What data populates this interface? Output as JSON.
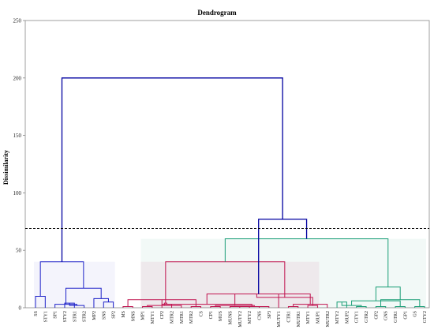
{
  "chart_data": {
    "type": "dendrogram",
    "title": "Dendrogram",
    "ylabel": "Dissimilarity",
    "xlabel": "",
    "ylim": [
      0,
      250
    ],
    "yticks": [
      0,
      50,
      100,
      150,
      200,
      250
    ],
    "cut_threshold": 69,
    "leaves": [
      "SS",
      "STY1",
      "SP1",
      "STY2",
      "STR1",
      "STR2",
      "MP2",
      "SNS",
      "SP2",
      "MS",
      "MNS",
      "MP1",
      "MTY1",
      "CP2",
      "MTR2",
      "MTR1",
      "MTR2",
      "CS",
      "CP1",
      "MUS",
      "MUNS",
      "MUTY2",
      "MTY2",
      "CNS",
      "SP3",
      "MUTY1",
      "CTR1",
      "MUTR1",
      "MTY1",
      "MUP1",
      "MUTR2",
      "MTY2",
      "MUP2",
      "GTY1",
      "GTR2",
      "GP2",
      "GNS",
      "GTR1",
      "GP1",
      "GS",
      "GTY2"
    ],
    "merges": [
      {
        "left": 0,
        "right": 1,
        "height": 10,
        "cluster": 1
      },
      {
        "left": 3,
        "right": 4,
        "height": 4,
        "cluster": 1
      },
      {
        "left": 42,
        "right": 5,
        "height": 2,
        "cluster": 1
      },
      {
        "left": 2,
        "right": 43,
        "height": 3,
        "cluster": 1
      },
      {
        "left": 7,
        "right": 8,
        "height": 5,
        "cluster": 1
      },
      {
        "left": 6,
        "right": 45,
        "height": 8,
        "cluster": 1
      },
      {
        "left": 44,
        "right": 46,
        "height": 17,
        "cluster": 1
      },
      {
        "left": 41,
        "right": 47,
        "height": 40,
        "cluster": 1
      },
      {
        "left": 9,
        "right": 10,
        "height": 1,
        "cluster": 2
      },
      {
        "left": 11,
        "right": 12,
        "height": 1,
        "cluster": 2
      },
      {
        "left": 13,
        "right": 14,
        "height": 3,
        "cluster": 2
      },
      {
        "left": 50,
        "right": 15,
        "height": 2,
        "cluster": 2
      },
      {
        "left": 16,
        "right": 17,
        "height": 1,
        "cluster": 2
      },
      {
        "left": 51,
        "right": 52,
        "height": 4,
        "cluster": 2
      },
      {
        "left": 49,
        "right": 53,
        "height": 7,
        "cluster": 2
      },
      {
        "left": 18,
        "right": 19,
        "height": 1,
        "cluster": 2
      },
      {
        "left": 20,
        "right": 21,
        "height": 1,
        "cluster": 2
      },
      {
        "left": 22,
        "right": 23,
        "height": 1,
        "cluster": 2
      },
      {
        "left": 57,
        "right": 24,
        "height": 1,
        "cluster": 2
      },
      {
        "left": 56,
        "right": 58,
        "height": 2,
        "cluster": 2
      },
      {
        "left": 55,
        "right": 59,
        "height": 3,
        "cluster": 2
      },
      {
        "left": 60,
        "right": 25,
        "height": 12,
        "cluster": 2
      },
      {
        "left": 26,
        "right": 27,
        "height": 1,
        "cluster": 2
      },
      {
        "left": 28,
        "right": 29,
        "height": 2,
        "cluster": 2
      },
      {
        "left": 63,
        "right": 30,
        "height": 3,
        "cluster": 2
      },
      {
        "left": 62,
        "right": 64,
        "height": 9,
        "cluster": 2
      },
      {
        "left": 61,
        "right": 65,
        "height": 12,
        "cluster": 2
      },
      {
        "left": 54,
        "right": 66,
        "height": 40,
        "cluster": 2
      },
      {
        "left": 31,
        "right": 32,
        "height": 5,
        "cluster": 3
      },
      {
        "left": 33,
        "right": 34,
        "height": 1,
        "cluster": 3
      },
      {
        "left": 35,
        "right": 36,
        "height": 1,
        "cluster": 3
      },
      {
        "left": 69,
        "right": 70,
        "height": 2,
        "cluster": 3
      },
      {
        "left": 37,
        "right": 38,
        "height": 1,
        "cluster": 3
      },
      {
        "left": 39,
        "right": 40,
        "height": 1,
        "cluster": 3
      },
      {
        "left": 72,
        "right": 73,
        "height": 6,
        "cluster": 3
      },
      {
        "left": 71,
        "right": 74,
        "height": 7,
        "cluster": 3
      },
      {
        "left": 75,
        "right": 76,
        "height": 18,
        "cluster": 3
      },
      {
        "left": 68,
        "right": 77,
        "height": 60,
        "cluster": 3
      },
      {
        "left": 67,
        "right": 78,
        "height": 77,
        "cluster": 0
      },
      {
        "left": 48,
        "right": 79,
        "height": 200,
        "cluster": 0
      }
    ],
    "cluster_colors": [
      "#0000a0",
      "#1e22c8",
      "#c0134f",
      "#1b9e77"
    ],
    "cluster_fills": [
      "none",
      "rgba(30,34,200,0.05)",
      "rgba(210,40,120,0.08)",
      "rgba(27,158,119,0.06)"
    ],
    "cut_line_color": "#000000",
    "grid": false,
    "legend": "none"
  }
}
